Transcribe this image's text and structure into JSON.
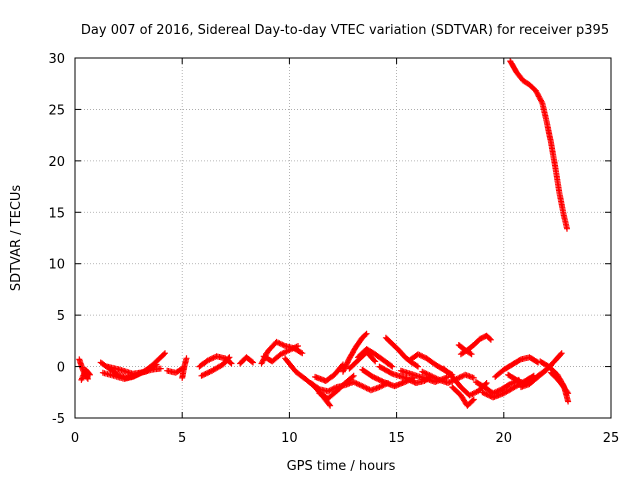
{
  "chart_data": {
    "type": "scatter",
    "title": "Day 007 of 2016, Sidereal Day-to-day VTEC variation (SDTVAR) for receiver p395",
    "xlabel": "GPS time / hours",
    "ylabel": "SDTVAR / TECUs",
    "xlim": [
      0,
      25
    ],
    "ylim": [
      -5,
      30
    ],
    "xticks": [
      0,
      5,
      10,
      15,
      20,
      25
    ],
    "yticks": [
      -5,
      0,
      5,
      10,
      15,
      20,
      25,
      30
    ],
    "grid": true,
    "marker": "+",
    "series": [
      {
        "name": "SDTVAR",
        "color": "#ff0000",
        "tracks": [
          {
            "x": [
              0.2,
              0.4,
              0.6
            ],
            "y": [
              0.7,
              -0.5,
              -1.2
            ]
          },
          {
            "x": [
              0.3,
              0.5,
              0.7
            ],
            "y": [
              -1.3,
              -0.3,
              -0.8
            ]
          },
          {
            "x": [
              1.2,
              1.6,
              2.0,
              2.4,
              2.8,
              3.2,
              3.6,
              4.0,
              4.2
            ],
            "y": [
              0.4,
              -0.2,
              -0.8,
              -1.1,
              -0.9,
              -0.5,
              0.1,
              0.9,
              1.3
            ]
          },
          {
            "x": [
              1.3,
              1.8,
              2.3,
              2.7,
              3.1,
              3.6,
              4.0
            ],
            "y": [
              -0.6,
              -0.9,
              -1.2,
              -1.0,
              -0.6,
              -0.3,
              -0.2
            ]
          },
          {
            "x": [
              1.5,
              2.1,
              2.7,
              3.3,
              3.8
            ],
            "y": [
              0.0,
              -0.3,
              -0.7,
              -0.5,
              0.2
            ]
          },
          {
            "x": [
              4.3,
              4.7,
              5.0
            ],
            "y": [
              -0.4,
              -0.6,
              -0.2
            ]
          },
          {
            "x": [
              5.0,
              5.1,
              5.2
            ],
            "y": [
              -1.1,
              0.0,
              0.8
            ]
          },
          {
            "x": [
              5.8,
              6.2,
              6.6,
              7.0,
              7.3
            ],
            "y": [
              0.0,
              0.6,
              1.0,
              0.8,
              0.3
            ]
          },
          {
            "x": [
              5.9,
              6.4,
              6.9,
              7.2
            ],
            "y": [
              -0.9,
              -0.4,
              0.2,
              0.9
            ]
          },
          {
            "x": [
              7.7,
              8.0,
              8.3
            ],
            "y": [
              0.3,
              0.9,
              0.4
            ]
          },
          {
            "x": [
              8.7,
              9.0,
              9.4,
              9.8,
              10.2,
              10.6
            ],
            "y": [
              0.3,
              1.5,
              2.4,
              2.0,
              1.8,
              1.3
            ]
          },
          {
            "x": [
              8.8,
              9.2,
              9.6,
              10.0,
              10.4
            ],
            "y": [
              1.0,
              0.5,
              1.2,
              1.6,
              2.0
            ]
          },
          {
            "x": [
              9.8,
              10.3,
              10.8,
              11.2,
              11.6,
              11.9
            ],
            "y": [
              0.8,
              -0.5,
              -1.3,
              -2.0,
              -3.0,
              -3.8
            ]
          },
          {
            "x": [
              11.4,
              11.8,
              12.2,
              12.6,
              13.0
            ],
            "y": [
              -2.6,
              -3.1,
              -2.4,
              -1.6,
              -0.9
            ]
          },
          {
            "x": [
              11.2,
              11.7,
              12.1,
              12.5
            ],
            "y": [
              -1.0,
              -1.4,
              -0.8,
              0.2
            ]
          },
          {
            "x": [
              11.0,
              11.4,
              11.8,
              12.2,
              12.6,
              13.0,
              13.4,
              13.8,
              14.2,
              14.6
            ],
            "y": [
              -1.6,
              -2.2,
              -2.4,
              -2.0,
              -1.8,
              -1.5,
              -1.9,
              -2.3,
              -2.0,
              -1.6
            ]
          },
          {
            "x": [
              12.5,
              12.8,
              13.1,
              13.4,
              13.6
            ],
            "y": [
              -0.5,
              0.8,
              1.9,
              2.8,
              3.2
            ]
          },
          {
            "x": [
              12.8,
              13.2,
              13.6,
              14.0
            ],
            "y": [
              -0.2,
              0.6,
              1.4,
              0.5
            ]
          },
          {
            "x": [
              13.2,
              13.6,
              14.0,
              14.4,
              14.8
            ],
            "y": [
              0.9,
              1.7,
              1.2,
              0.6,
              0.0
            ]
          },
          {
            "x": [
              13.4,
              13.9,
              14.4,
              14.9,
              15.4,
              15.8
            ],
            "y": [
              -0.3,
              -1.0,
              -1.5,
              -1.9,
              -1.5,
              -1.1
            ]
          },
          {
            "x": [
              14.2,
              14.8,
              15.4,
              15.9,
              16.3,
              16.6
            ],
            "y": [
              0.0,
              -0.7,
              -1.1,
              -1.6,
              -1.4,
              -1.0
            ]
          },
          {
            "x": [
              14.5,
              14.8,
              15.1,
              15.4,
              15.7,
              16.0
            ],
            "y": [
              2.8,
              2.2,
              1.6,
              0.9,
              0.4,
              0.0
            ]
          },
          {
            "x": [
              15.6,
              16.0,
              16.4,
              16.8,
              17.2,
              17.6
            ],
            "y": [
              0.6,
              1.2,
              0.8,
              0.2,
              -0.3,
              -0.8
            ]
          },
          {
            "x": [
              15.2,
              15.8,
              16.4,
              16.8,
              17.4
            ],
            "y": [
              -0.4,
              -0.8,
              -1.2,
              -1.5,
              -1.0
            ]
          },
          {
            "x": [
              16.2,
              16.6,
              17.0,
              17.4,
              17.8,
              18.2,
              18.6
            ],
            "y": [
              -0.5,
              -0.9,
              -1.3,
              -1.6,
              -1.2,
              -0.8,
              -1.1
            ]
          },
          {
            "x": [
              17.2,
              17.6,
              18.0,
              18.4,
              18.8,
              19.2
            ],
            "y": [
              -0.2,
              -1.0,
              -2.0,
              -2.8,
              -2.4,
              -1.6
            ]
          },
          {
            "x": [
              17.6,
              18.0,
              18.3,
              18.6
            ],
            "y": [
              -2.0,
              -2.8,
              -3.8,
              -3.2
            ]
          },
          {
            "x": [
              18.0,
              18.3,
              18.6,
              18.9,
              19.2,
              19.4
            ],
            "y": [
              1.2,
              1.6,
              2.1,
              2.7,
              3.0,
              2.6
            ]
          },
          {
            "x": [
              17.9,
              18.2,
              18.5
            ],
            "y": [
              2.1,
              1.6,
              1.2
            ]
          },
          {
            "x": [
              18.7,
              19.1,
              19.5,
              19.9,
              20.3,
              20.7
            ],
            "y": [
              -1.5,
              -2.0,
              -2.6,
              -2.2,
              -1.7,
              -1.3
            ]
          },
          {
            "x": [
              19.0,
              19.5,
              20.0,
              20.5,
              21.0,
              21.4
            ],
            "y": [
              -2.5,
              -3.0,
              -2.6,
              -2.0,
              -1.4,
              -0.9
            ]
          },
          {
            "x": [
              19.6,
              20.0,
              20.4,
              20.8,
              21.2,
              21.6
            ],
            "y": [
              -1.0,
              -0.3,
              0.2,
              0.7,
              0.9,
              0.4
            ]
          },
          {
            "x": [
              20.2,
              20.6,
              21.0,
              21.4,
              21.8,
              22.2
            ],
            "y": [
              -0.8,
              -1.3,
              -1.7,
              -1.2,
              -0.6,
              0.1
            ]
          },
          {
            "x": [
              20.8,
              21.2,
              21.6,
              22.0,
              22.4,
              22.7
            ],
            "y": [
              -2.0,
              -1.7,
              -1.0,
              -0.3,
              0.6,
              1.3
            ]
          },
          {
            "x": [
              21.7,
              22.1,
              22.5,
              22.8,
              23.0
            ],
            "y": [
              0.5,
              0.0,
              -0.8,
              -1.9,
              -3.4
            ]
          },
          {
            "x": [
              22.2,
              22.5,
              22.8,
              23.0
            ],
            "y": [
              -0.6,
              -1.2,
              -2.0,
              -2.6
            ]
          },
          {
            "x": [
              20.3,
              20.6,
              20.9,
              21.2,
              21.5,
              21.8,
              22.0,
              22.2,
              22.4,
              22.6,
              22.8,
              22.95
            ],
            "y": [
              29.7,
              28.6,
              27.8,
              27.4,
              26.8,
              25.6,
              23.8,
              21.8,
              19.4,
              16.8,
              14.7,
              13.4
            ]
          }
        ]
      }
    ]
  }
}
